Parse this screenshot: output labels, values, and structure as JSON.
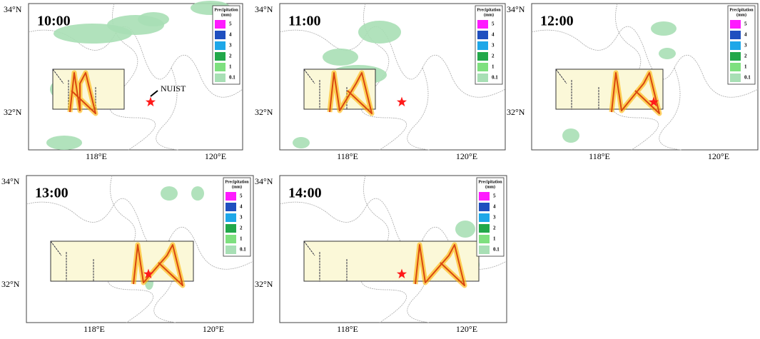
{
  "axes": {
    "lat": [
      "34°N",
      "32°N"
    ],
    "lon": [
      "118°E",
      "120°E"
    ]
  },
  "legend": {
    "title": "Precipitation",
    "unit": "(mm)",
    "levels": [
      {
        "label": "5",
        "color": "#ff1aff"
      },
      {
        "label": "4",
        "color": "#1f4fbf"
      },
      {
        "label": "3",
        "color": "#1ea7e8"
      },
      {
        "label": "2",
        "color": "#22a84a"
      },
      {
        "label": "1",
        "color": "#7ee07f"
      },
      {
        "label": "0.1",
        "color": "#a8dfb5"
      }
    ]
  },
  "panels": [
    {
      "time": "10:00",
      "annotation": "NUIST"
    },
    {
      "time": "11:00"
    },
    {
      "time": "12:00"
    },
    {
      "time": "13:00"
    },
    {
      "time": "14:00"
    }
  ]
}
